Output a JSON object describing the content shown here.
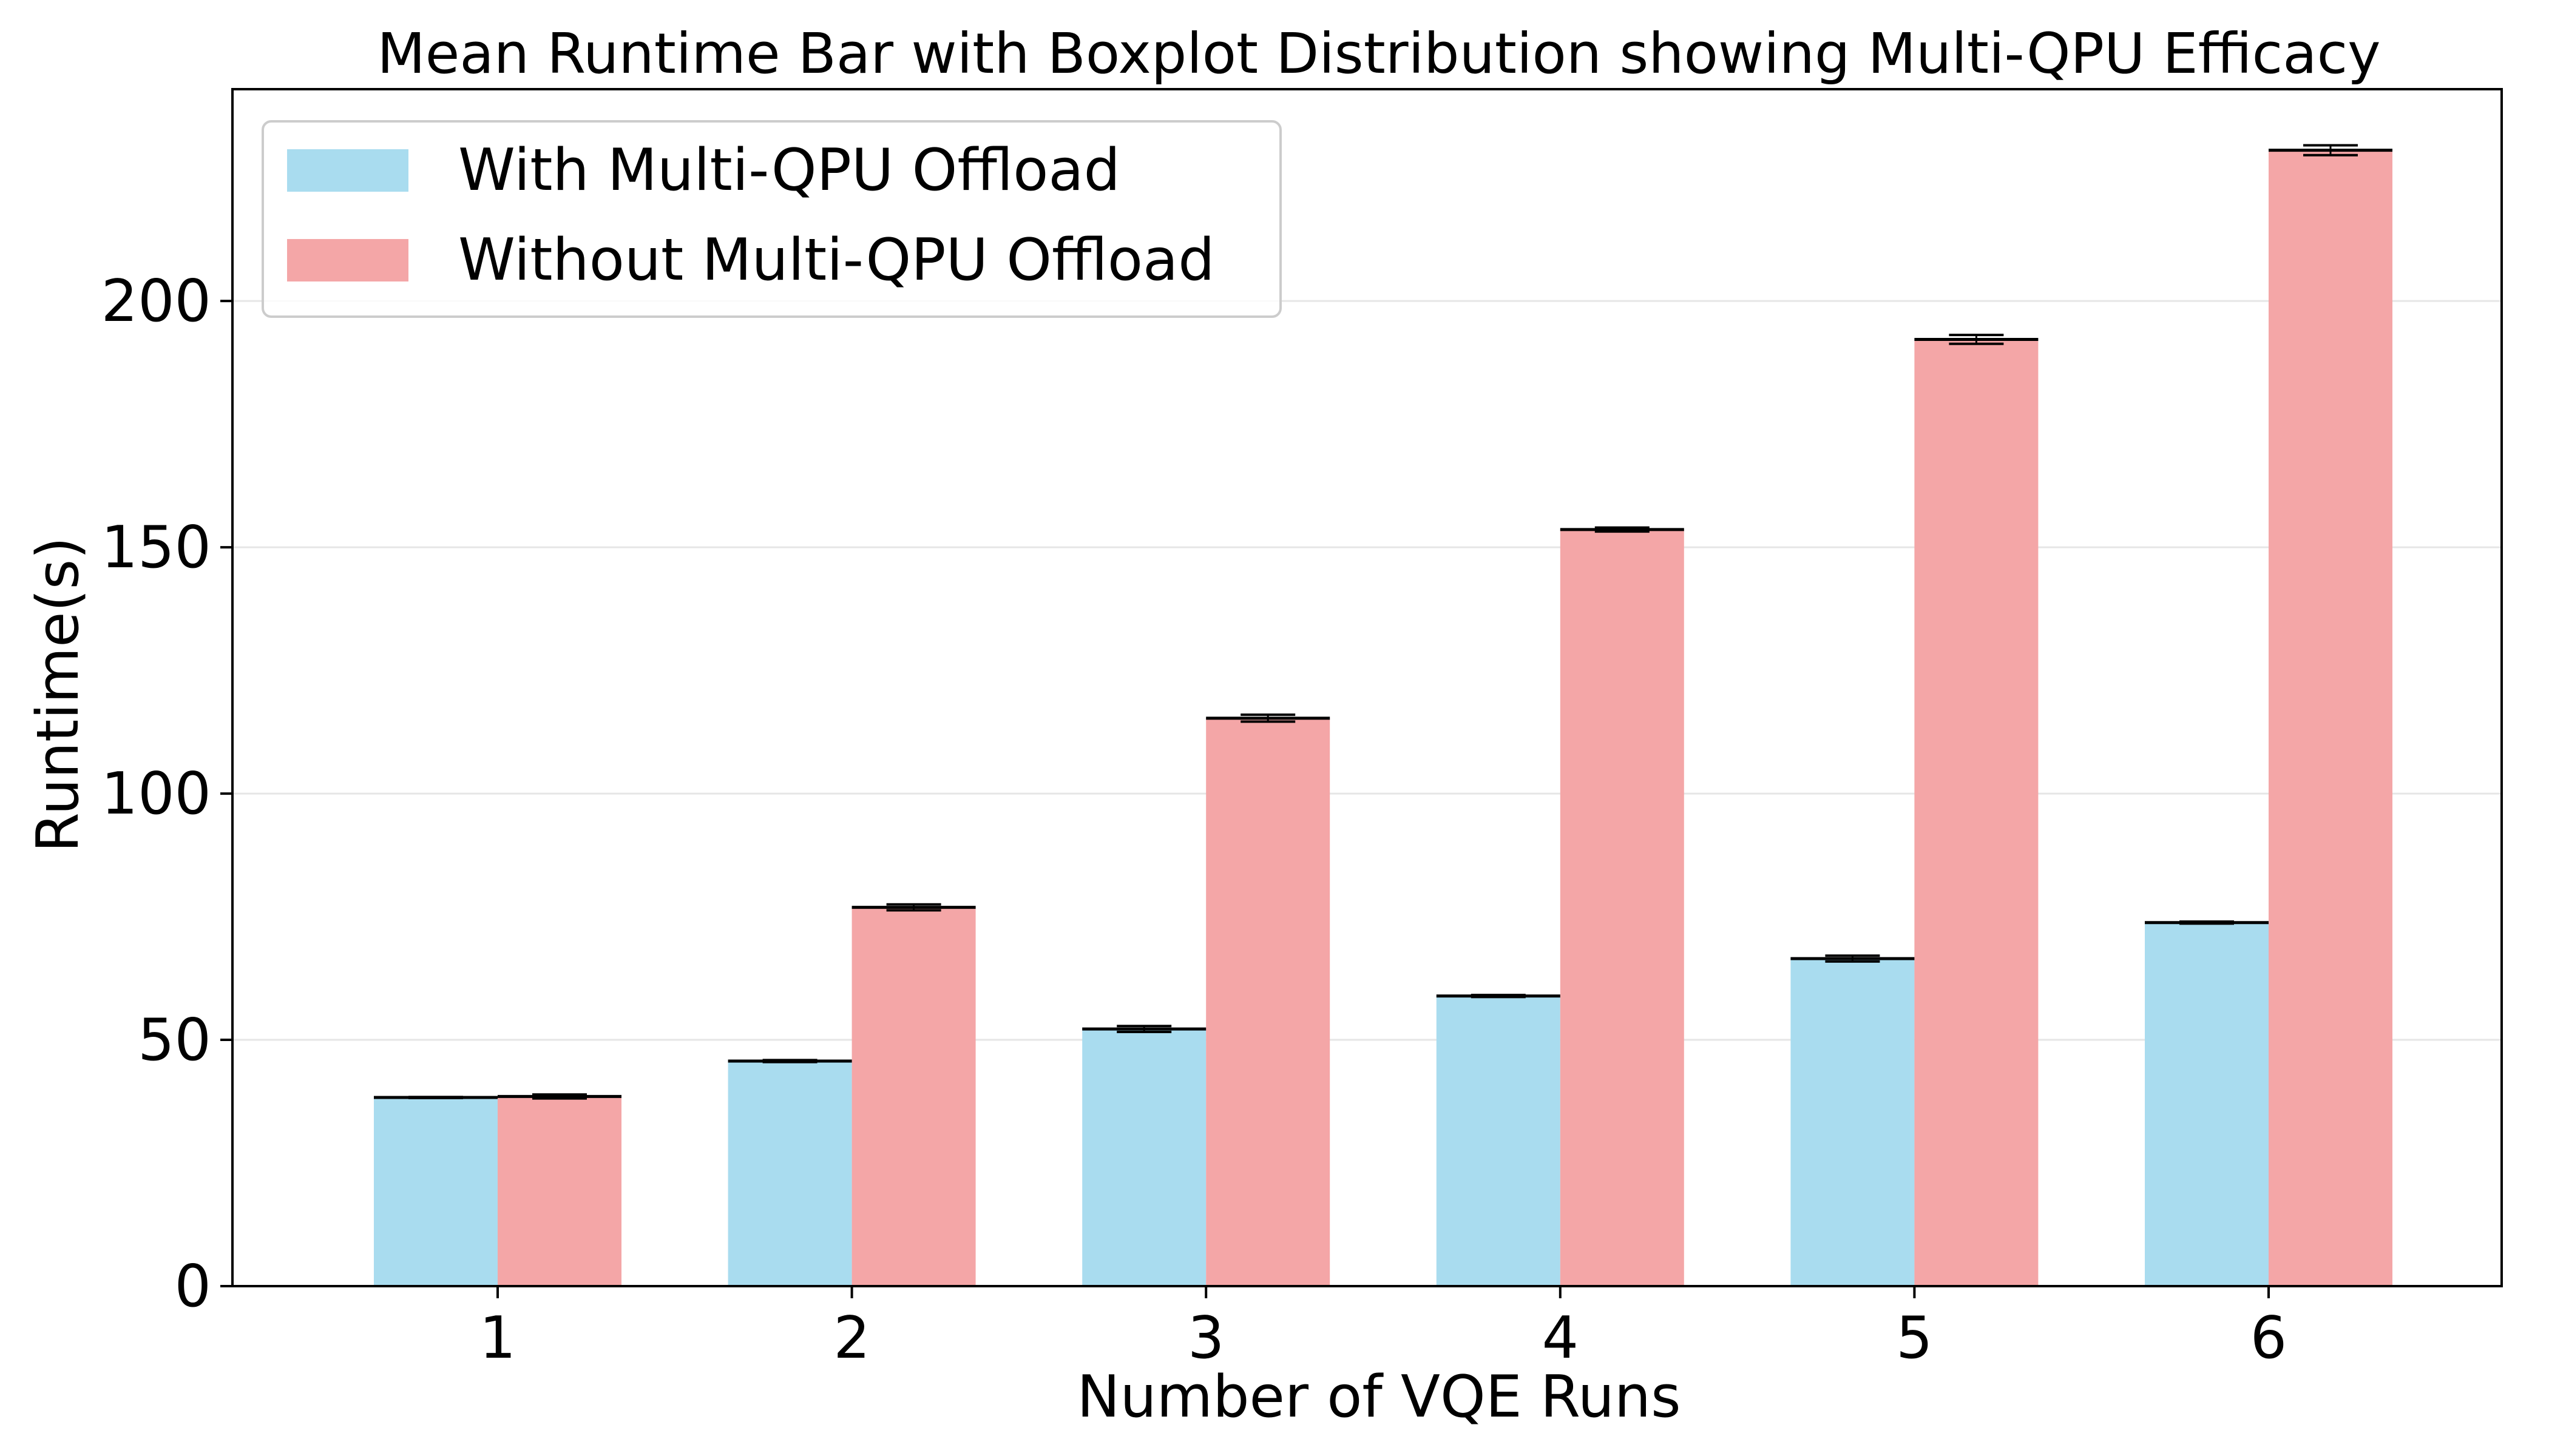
{
  "chart_data": {
    "type": "bar",
    "title": "Mean Runtime Bar with Boxplot Distribution showing Multi-QPU Efficacy",
    "xlabel": "Number of VQE Runs",
    "ylabel": "Runtime(s)",
    "categories": [
      "1",
      "2",
      "3",
      "4",
      "5",
      "6"
    ],
    "ylim": [
      0,
      243
    ],
    "yticks": [
      "0",
      "50",
      "100",
      "150",
      "200"
    ],
    "grid": "horizontal",
    "legend_position": "top-left",
    "series": [
      {
        "name": "With Multi-QPU Offload",
        "color": "#a9dcef",
        "values": [
          38.3,
          45.7,
          52.2,
          58.9,
          66.5,
          73.8
        ],
        "spread": [
          0.1,
          0.2,
          0.6,
          0.2,
          0.6,
          0.2
        ]
      },
      {
        "name": "Without Multi-QPU Offload",
        "color": "#f4a6a7",
        "values": [
          38.5,
          76.9,
          115.3,
          153.6,
          192.2,
          230.6
        ],
        "spread": [
          0.4,
          0.6,
          0.7,
          0.4,
          0.9,
          1.0
        ]
      }
    ]
  }
}
